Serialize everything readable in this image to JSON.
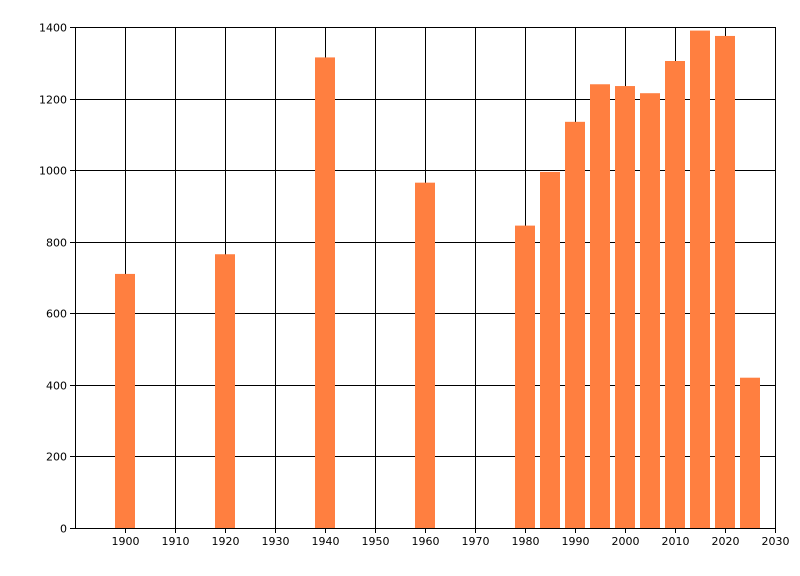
{
  "chart_data": {
    "type": "bar",
    "x": [
      1900,
      1920,
      1940,
      1960,
      1980,
      1985,
      1990,
      1995,
      2000,
      2005,
      2010,
      2015,
      2020,
      2025
    ],
    "values": [
      710,
      765,
      1315,
      965,
      845,
      995,
      1135,
      1240,
      1235,
      1215,
      1305,
      1390,
      1375,
      420
    ],
    "xlim": [
      1890,
      2030
    ],
    "ylim": [
      0,
      1400
    ],
    "x_ticks": [
      1900,
      1910,
      1920,
      1930,
      1940,
      1950,
      1960,
      1970,
      1980,
      1990,
      2000,
      2010,
      2020,
      2030
    ],
    "y_ticks": [
      0,
      200,
      400,
      600,
      800,
      1000,
      1200,
      1400
    ],
    "bar_width_years": 4,
    "grid": true,
    "legend": "none",
    "bar_color": "#ff7f40",
    "title": "",
    "xlabel": "",
    "ylabel": ""
  }
}
